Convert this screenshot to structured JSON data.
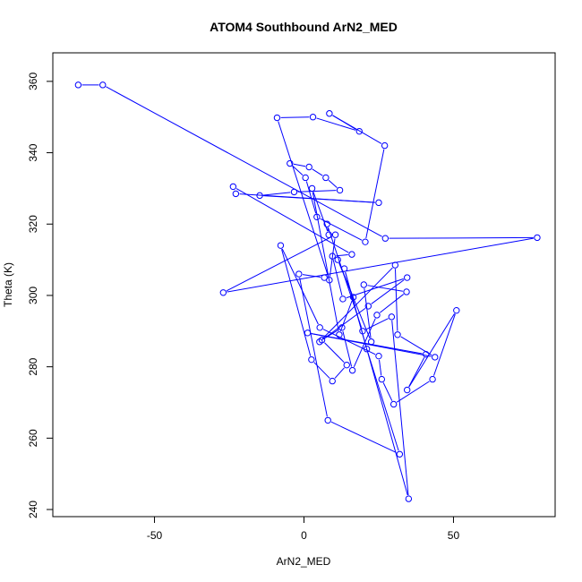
{
  "chart_data": {
    "type": "line",
    "title": "ATOM4 Southbound ArN2_MED",
    "xlabel": "ArN2_MED",
    "ylabel": "Theta (K)",
    "xlim": [
      -84,
      84
    ],
    "ylim": [
      238,
      368
    ],
    "xticks": [
      -50,
      0,
      50
    ],
    "yticks": [
      240,
      260,
      280,
      300,
      320,
      340,
      360
    ],
    "grid": false,
    "series": [
      {
        "color": "#0000ff",
        "marker": "open-circle",
        "x": [
          -75.5,
          -67.3,
          27.2,
          78.0,
          -27.0,
          10.5,
          8.5,
          -9.0,
          3.0,
          18.5,
          8.5,
          27.0,
          20.5,
          4.3,
          0.5,
          -4.7,
          1.7,
          7.3,
          12.0,
          -3.3,
          -14.8,
          25.0,
          -22.8,
          -23.7,
          16.0,
          9.5,
          13.0,
          34.5,
          21.5,
          5.2,
          30.5,
          31.3,
          43.8,
          1.2,
          40.8,
          34.5,
          51.0,
          43.0,
          30.0,
          26.0,
          25.0,
          5.3,
          -7.8,
          2.5,
          9.5,
          14.3,
          6.0,
          12.7,
          16.2,
          24.4,
          34.3,
          20.0,
          22.5,
          11.3,
          16.5,
          11.8,
          2.7,
          8.3,
          7.7,
          19.6,
          29.3,
          35.0,
          13.5,
          21.0,
          32.0,
          8.0,
          -1.7,
          6.8
        ],
        "y": [
          359.0,
          359.0,
          316.0,
          316.2,
          300.8,
          317.0,
          304.3,
          349.8,
          350.0,
          346.0,
          351.0,
          342.0,
          315.0,
          322.0,
          333.0,
          337.0,
          336.0,
          333.0,
          329.5,
          329.0,
          328.0,
          326.0,
          328.5,
          330.5,
          311.5,
          311.0,
          299.0,
          305.0,
          297.0,
          287.0,
          308.5,
          289.0,
          282.7,
          289.5,
          283.5,
          273.5,
          295.8,
          276.5,
          269.5,
          276.5,
          283.0,
          291.0,
          314.0,
          282.0,
          276.0,
          280.5,
          287.5,
          291.0,
          279.0,
          294.5,
          301.0,
          303.0,
          287.0,
          310.0,
          299.5,
          289.0,
          330.0,
          317.0,
          320.0,
          290.0,
          294.0,
          243.0,
          307.5,
          285.0,
          255.5,
          265.0,
          306.0,
          305.0
        ]
      }
    ]
  }
}
